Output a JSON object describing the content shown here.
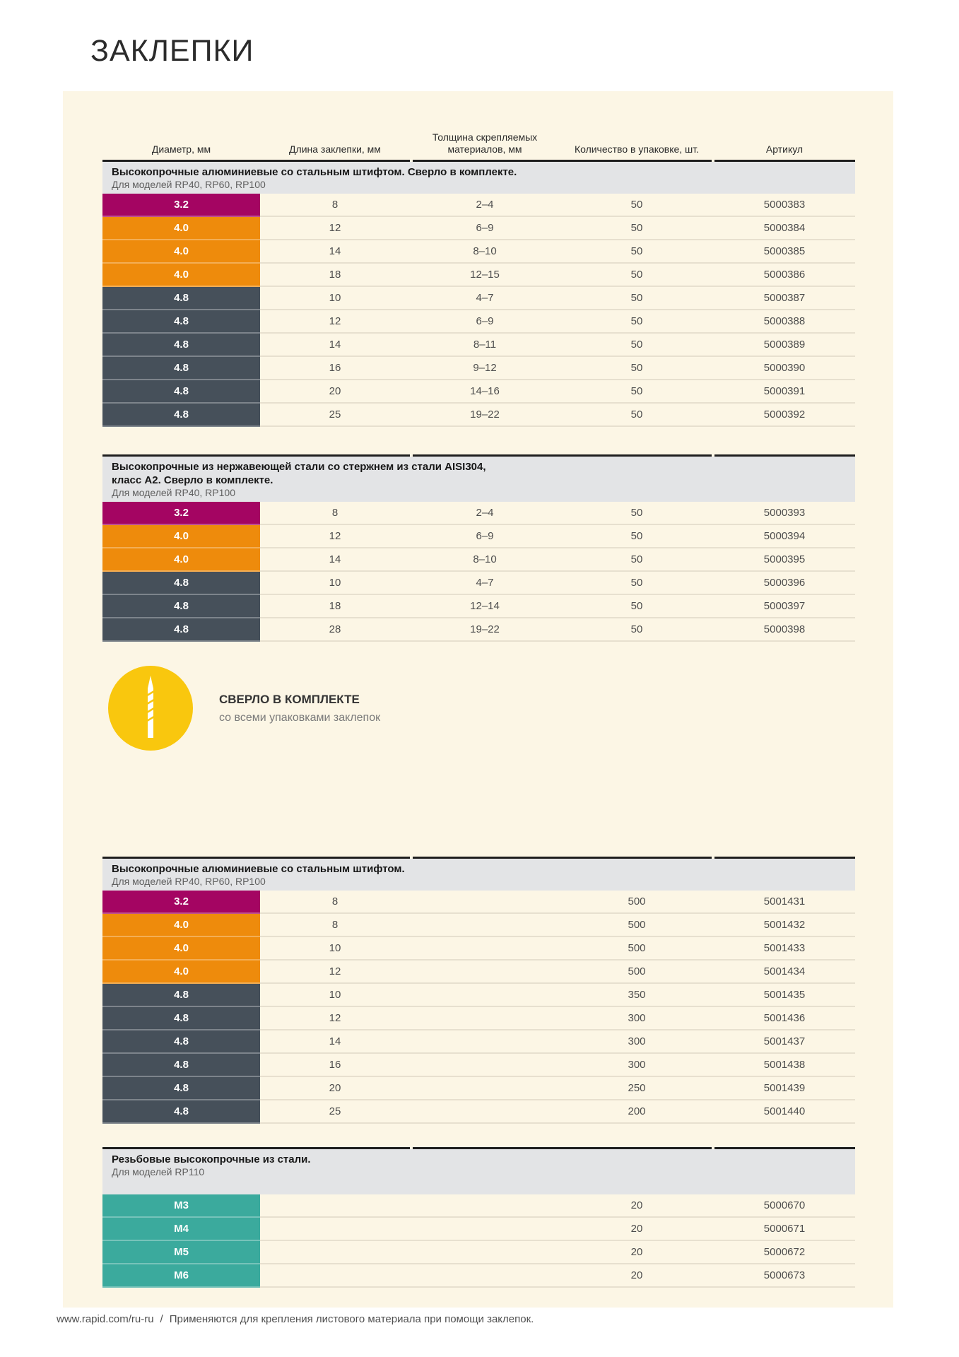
{
  "page": {
    "title": "ЗАКЛЕПКИ",
    "footer": {
      "url": "www.rapid.com/ru-ru",
      "separator": "/",
      "note": "Применяются для крепления листового материала при помощи заклепок."
    }
  },
  "colors": {
    "magenta": "#a40562",
    "orange": "#ee8b0c",
    "slate": "#46505a",
    "teal": "#3baa9d",
    "yellow": "#f9c70e",
    "panel_bg": "#fcf6e5",
    "section_header_bg": "#e3e4e6"
  },
  "callout": {
    "icon": "drill-bit-icon",
    "title": "СВЕРЛО В КОМПЛЕКТЕ",
    "subtitle": "со всеми упаковками заклепок"
  },
  "table": {
    "columns": [
      "Диаметр, мм",
      "Длина заклепки, мм",
      "Толщина скрепляемых материалов, мм",
      "Количество в упаковке, шт.",
      "Артикул"
    ],
    "sections": [
      {
        "title": "Высокопрочные алюминиевые со стальным штифтом. Сверло в комплекте.",
        "subtitle": "Для моделей RP40, RP60, RP100",
        "rows": [
          {
            "diameter": "3.2",
            "color": "magenta",
            "length": "8",
            "thickness": "2–4",
            "qty": "50",
            "sku": "5000383"
          },
          {
            "diameter": "4.0",
            "color": "orange",
            "length": "12",
            "thickness": "6–9",
            "qty": "50",
            "sku": "5000384"
          },
          {
            "diameter": "4.0",
            "color": "orange",
            "length": "14",
            "thickness": "8–10",
            "qty": "50",
            "sku": "5000385"
          },
          {
            "diameter": "4.0",
            "color": "orange",
            "length": "18",
            "thickness": "12–15",
            "qty": "50",
            "sku": "5000386"
          },
          {
            "diameter": "4.8",
            "color": "slate",
            "length": "10",
            "thickness": "4–7",
            "qty": "50",
            "sku": "5000387"
          },
          {
            "diameter": "4.8",
            "color": "slate",
            "length": "12",
            "thickness": "6–9",
            "qty": "50",
            "sku": "5000388"
          },
          {
            "diameter": "4.8",
            "color": "slate",
            "length": "14",
            "thickness": "8–11",
            "qty": "50",
            "sku": "5000389"
          },
          {
            "diameter": "4.8",
            "color": "slate",
            "length": "16",
            "thickness": "9–12",
            "qty": "50",
            "sku": "5000390"
          },
          {
            "diameter": "4.8",
            "color": "slate",
            "length": "20",
            "thickness": "14–16",
            "qty": "50",
            "sku": "5000391"
          },
          {
            "diameter": "4.8",
            "color": "slate",
            "length": "25",
            "thickness": "19–22",
            "qty": "50",
            "sku": "5000392"
          }
        ]
      },
      {
        "title": "Высокопрочные из нержавеющей стали со стержнем из стали AISI304,\nкласс А2. Сверло в комплекте.",
        "subtitle": "Для моделей RP40, RP100",
        "rows": [
          {
            "diameter": "3.2",
            "color": "magenta",
            "length": "8",
            "thickness": "2–4",
            "qty": "50",
            "sku": "5000393"
          },
          {
            "diameter": "4.0",
            "color": "orange",
            "length": "12",
            "thickness": "6–9",
            "qty": "50",
            "sku": "5000394"
          },
          {
            "diameter": "4.0",
            "color": "orange",
            "length": "14",
            "thickness": "8–10",
            "qty": "50",
            "sku": "5000395"
          },
          {
            "diameter": "4.8",
            "color": "slate",
            "length": "10",
            "thickness": "4–7",
            "qty": "50",
            "sku": "5000396"
          },
          {
            "diameter": "4.8",
            "color": "slate",
            "length": "18",
            "thickness": "12–14",
            "qty": "50",
            "sku": "5000397"
          },
          {
            "diameter": "4.8",
            "color": "slate",
            "length": "28",
            "thickness": "19–22",
            "qty": "50",
            "sku": "5000398"
          }
        ]
      },
      {
        "title": "Высокопрочные алюминиевые со стальным штифтом.",
        "subtitle": "Для моделей RP40, RP60, RP100",
        "rows": [
          {
            "diameter": "3.2",
            "color": "magenta",
            "length": "8",
            "thickness": "",
            "qty": "500",
            "sku": "5001431"
          },
          {
            "diameter": "4.0",
            "color": "orange",
            "length": "8",
            "thickness": "",
            "qty": "500",
            "sku": "5001432"
          },
          {
            "diameter": "4.0",
            "color": "orange",
            "length": "10",
            "thickness": "",
            "qty": "500",
            "sku": "5001433"
          },
          {
            "diameter": "4.0",
            "color": "orange",
            "length": "12",
            "thickness": "",
            "qty": "500",
            "sku": "5001434"
          },
          {
            "diameter": "4.8",
            "color": "slate",
            "length": "10",
            "thickness": "",
            "qty": "350",
            "sku": "5001435"
          },
          {
            "diameter": "4.8",
            "color": "slate",
            "length": "12",
            "thickness": "",
            "qty": "300",
            "sku": "5001436"
          },
          {
            "diameter": "4.8",
            "color": "slate",
            "length": "14",
            "thickness": "",
            "qty": "300",
            "sku": "5001437"
          },
          {
            "diameter": "4.8",
            "color": "slate",
            "length": "16",
            "thickness": "",
            "qty": "300",
            "sku": "5001438"
          },
          {
            "diameter": "4.8",
            "color": "slate",
            "length": "20",
            "thickness": "",
            "qty": "250",
            "sku": "5001439"
          },
          {
            "diameter": "4.8",
            "color": "slate",
            "length": "25",
            "thickness": "",
            "qty": "200",
            "sku": "5001440"
          }
        ]
      },
      {
        "title": "Резьбовые высокопрочные из стали.",
        "subtitle": "Для моделей RP110",
        "rows": [
          {
            "diameter": "M3",
            "color": "teal",
            "length": "",
            "thickness": "",
            "qty": "20",
            "sku": "5000670"
          },
          {
            "diameter": "M4",
            "color": "teal",
            "length": "",
            "thickness": "",
            "qty": "20",
            "sku": "5000671"
          },
          {
            "diameter": "M5",
            "color": "teal",
            "length": "",
            "thickness": "",
            "qty": "20",
            "sku": "5000672"
          },
          {
            "diameter": "M6",
            "color": "teal",
            "length": "",
            "thickness": "",
            "qty": "20",
            "sku": "5000673"
          }
        ]
      }
    ]
  }
}
